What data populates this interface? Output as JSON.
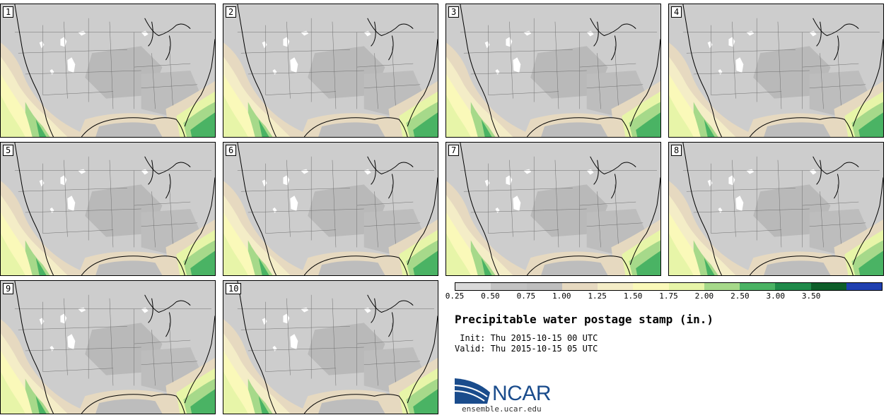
{
  "panels": [
    {
      "label": "1"
    },
    {
      "label": "2"
    },
    {
      "label": "3"
    },
    {
      "label": "4"
    },
    {
      "label": "5"
    },
    {
      "label": "6"
    },
    {
      "label": "7"
    },
    {
      "label": "8"
    },
    {
      "label": "9"
    },
    {
      "label": "10"
    }
  ],
  "legend": {
    "labels": [
      "0.25",
      "0.50",
      "0.75",
      "1.00",
      "1.25",
      "1.50",
      "1.75",
      "2.00",
      "2.50",
      "3.00",
      "3.50"
    ],
    "colors": [
      "#d9d9d9",
      "#c3c3c3",
      "#bebebe",
      "#e6d9c0",
      "#f4edc7",
      "#faf9b9",
      "#e7f5a8",
      "#a6d98a",
      "#4ab364",
      "#1f8a4a",
      "#0d5e2a",
      "#1f3fb0"
    ]
  },
  "title": "Precipitable water postage stamp (in.)",
  "init": " Init: Thu 2015-10-15 00 UTC",
  "valid": "Valid: Thu 2015-10-15 05 UTC",
  "logo": {
    "text": "NCAR",
    "url": "ensemble.ucar.edu",
    "color": "#1a4c8c"
  }
}
